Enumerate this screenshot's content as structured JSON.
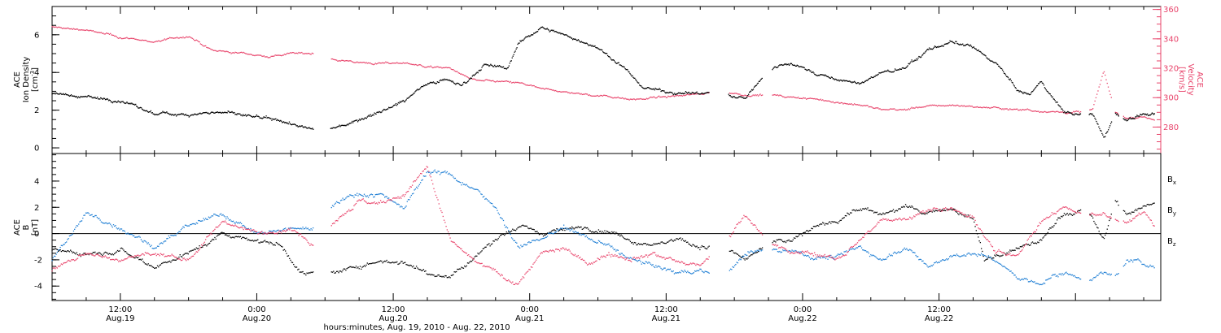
{
  "chart_data": [
    {
      "type": "scatter",
      "panel": "top",
      "left_axis": {
        "label_lines": [
          "ACE",
          "Ion Density"
        ],
        "unit_base": "[cm",
        "unit_sup": "-3",
        "unit_end": "]",
        "ylim": [
          -0.3,
          7.5
        ],
        "ticks": [
          "0",
          "2",
          "4",
          "6"
        ],
        "tick_values": [
          0,
          2,
          4,
          6
        ],
        "color": "#000000"
      },
      "right_axis": {
        "label_lines": [
          "ACE",
          "Velocity",
          "[km/s]"
        ],
        "ylim": [
          262,
          362
        ],
        "ticks": [
          "280",
          "300",
          "320",
          "340",
          "360"
        ],
        "tick_values": [
          280,
          300,
          320,
          340,
          360
        ],
        "color": "#e8436a"
      },
      "series": [
        {
          "color": "#000000",
          "axis": "left",
          "spread": 0.12,
          "points": [
            [
              0,
              2.9
            ],
            [
              3,
              2.7
            ],
            [
              6,
              2.5
            ],
            [
              9,
              1.8
            ],
            [
              12,
              1.8
            ],
            [
              15,
              1.9
            ],
            [
              17,
              1.7
            ],
            [
              19,
              1.5
            ],
            [
              21,
              1.3
            ],
            [
              22.5,
              1.0
            ],
            [
              24,
              0.9
            ],
            [
              25,
              1.1
            ],
            [
              27,
              1.5
            ],
            [
              29,
              2.0
            ],
            [
              31,
              2.5
            ],
            [
              33,
              3.5
            ],
            [
              35,
              3.6
            ],
            [
              36,
              3.3
            ],
            [
              38,
              4.4
            ],
            [
              40,
              4.2
            ],
            [
              41,
              5.5
            ],
            [
              43,
              6.4
            ],
            [
              44,
              6.2
            ],
            [
              46,
              5.8
            ],
            [
              48,
              5.3
            ],
            [
              50,
              4.4
            ],
            [
              52,
              3.2
            ],
            [
              54,
              3.0
            ],
            [
              56,
              2.9
            ],
            [
              58,
              2.9
            ],
            [
              60,
              2.7
            ],
            [
              61,
              2.6
            ],
            [
              63,
              4.2
            ],
            [
              65,
              4.5
            ],
            [
              67,
              4.0
            ],
            [
              69,
              3.6
            ],
            [
              71,
              3.4
            ],
            [
              73,
              4.0
            ],
            [
              75,
              4.2
            ],
            [
              77,
              5.2
            ],
            [
              79,
              5.6
            ],
            [
              81,
              5.3
            ],
            [
              83,
              4.5
            ],
            [
              85,
              3.0
            ],
            [
              86,
              2.8
            ],
            [
              87,
              3.5
            ],
            [
              89,
              1.9
            ],
            [
              90.5,
              1.8
            ],
            [
              91.5,
              1.8
            ],
            [
              92.5,
              0.5
            ],
            [
              93.5,
              1.8
            ],
            [
              94.5,
              1.5
            ],
            [
              96,
              1.8
            ],
            [
              97,
              1.7
            ]
          ]
        },
        {
          "color": "#e8436a",
          "axis": "right",
          "spread": 1.0,
          "points": [
            [
              0,
              348
            ],
            [
              3,
              346
            ],
            [
              6,
              341
            ],
            [
              9,
              338
            ],
            [
              12,
              342
            ],
            [
              14,
              332
            ],
            [
              17,
              330
            ],
            [
              19,
              328
            ],
            [
              21,
              330
            ],
            [
              23,
              330
            ],
            [
              25,
              326
            ],
            [
              27,
              324
            ],
            [
              29,
              323
            ],
            [
              31,
              324
            ],
            [
              33,
              321
            ],
            [
              35,
              320
            ],
            [
              37,
              312
            ],
            [
              39,
              311
            ],
            [
              41,
              310
            ],
            [
              43,
              306
            ],
            [
              45,
              304
            ],
            [
              47,
              302
            ],
            [
              49,
              301
            ],
            [
              51,
              299
            ],
            [
              53,
              300
            ],
            [
              55,
              301
            ],
            [
              57,
              303
            ],
            [
              58,
              304
            ],
            [
              61,
              302
            ],
            [
              63,
              302
            ],
            [
              65,
              300
            ],
            [
              67,
              299
            ],
            [
              69,
              297
            ],
            [
              71,
              295
            ],
            [
              73,
              292
            ],
            [
              75,
              292
            ],
            [
              77,
              294
            ],
            [
              79,
              295
            ],
            [
              81,
              294
            ],
            [
              83,
              293
            ],
            [
              85,
              292
            ],
            [
              87,
              291
            ],
            [
              89,
              290
            ],
            [
              90.5,
              290
            ],
            [
              91.5,
              292
            ],
            [
              92.5,
              318
            ],
            [
              93.5,
              290
            ],
            [
              94.5,
              286
            ],
            [
              96,
              287
            ],
            [
              97,
              285
            ]
          ]
        }
      ]
    },
    {
      "type": "scatter",
      "panel": "bottom",
      "left_axis": {
        "label_lines": [
          "ACE",
          "B",
          "[nT]"
        ],
        "ylim": [
          -5.1,
          6.1
        ],
        "ticks": [
          "-4",
          "-2",
          "0",
          "2",
          "4"
        ],
        "tick_values": [
          -4,
          -2,
          0,
          2,
          4
        ],
        "color": "#000000"
      },
      "reference_line": 0,
      "series": [
        {
          "name": "B",
          "sub": "x",
          "color": "#000000",
          "spread": 0.25,
          "points": [
            [
              0,
              -1.2
            ],
            [
              3,
              -1.5
            ],
            [
              6,
              -1.2
            ],
            [
              9,
              -2.5
            ],
            [
              12,
              -1.5
            ],
            [
              15,
              0.0
            ],
            [
              18,
              -0.5
            ],
            [
              20,
              -0.8
            ],
            [
              22,
              -3.0
            ],
            [
              24,
              -3.2
            ],
            [
              25,
              -3.0
            ],
            [
              27,
              -2.5
            ],
            [
              29,
              -2.0
            ],
            [
              31,
              -2.2
            ],
            [
              33,
              -3.0
            ],
            [
              35,
              -3.2
            ],
            [
              37,
              -2.0
            ],
            [
              39,
              -0.3
            ],
            [
              41,
              0.5
            ],
            [
              43,
              0.0
            ],
            [
              45,
              0.3
            ],
            [
              47,
              0.5
            ],
            [
              49,
              0.2
            ],
            [
              51,
              -0.5
            ],
            [
              53,
              -0.8
            ],
            [
              55,
              -0.5
            ],
            [
              57,
              -1.0
            ],
            [
              59,
              -1.0
            ],
            [
              61,
              -2.0
            ],
            [
              63,
              -0.8
            ],
            [
              65,
              -0.5
            ],
            [
              67,
              0.5
            ],
            [
              69,
              1.0
            ],
            [
              71,
              2.0
            ],
            [
              73,
              1.5
            ],
            [
              75,
              2.0
            ],
            [
              77,
              1.5
            ],
            [
              79,
              2.0
            ],
            [
              81,
              1.0
            ],
            [
              82,
              -2.0
            ],
            [
              84,
              -1.5
            ],
            [
              86,
              -0.8
            ],
            [
              87,
              -0.5
            ],
            [
              89,
              1.5
            ],
            [
              91,
              1.8
            ],
            [
              92.5,
              -0.5
            ],
            [
              93.5,
              2.5
            ],
            [
              94.5,
              1.5
            ],
            [
              96,
              2.0
            ],
            [
              97,
              2.5
            ]
          ]
        },
        {
          "name": "B",
          "sub": "y",
          "color": "#1e7ed4",
          "spread": 0.25,
          "points": [
            [
              0,
              -2.0
            ],
            [
              3,
              1.5
            ],
            [
              6,
              0.5
            ],
            [
              9,
              -1.0
            ],
            [
              12,
              0.5
            ],
            [
              15,
              1.5
            ],
            [
              18,
              0.0
            ],
            [
              21,
              0.3
            ],
            [
              23,
              0.5
            ],
            [
              25,
              2.5
            ],
            [
              27,
              3.0
            ],
            [
              29,
              3.0
            ],
            [
              31,
              2.0
            ],
            [
              33,
              4.8
            ],
            [
              35,
              4.5
            ],
            [
              37,
              3.5
            ],
            [
              39,
              2.0
            ],
            [
              41,
              -1.0
            ],
            [
              43,
              -0.5
            ],
            [
              45,
              0.5
            ],
            [
              47,
              -0.3
            ],
            [
              49,
              -1.0
            ],
            [
              51,
              -2.0
            ],
            [
              53,
              -2.5
            ],
            [
              55,
              -3.0
            ],
            [
              57,
              -2.8
            ],
            [
              59,
              -3.3
            ],
            [
              61,
              -1.5
            ],
            [
              63,
              -1.2
            ],
            [
              65,
              -1.2
            ],
            [
              67,
              -1.8
            ],
            [
              69,
              -1.8
            ],
            [
              71,
              -1.0
            ],
            [
              73,
              -2.0
            ],
            [
              75,
              -1.0
            ],
            [
              77,
              -2.5
            ],
            [
              79,
              -1.8
            ],
            [
              81,
              -1.5
            ],
            [
              83,
              -2.0
            ],
            [
              85,
              -3.5
            ],
            [
              86.5,
              -3.8
            ],
            [
              88,
              -3.3
            ],
            [
              89,
              -3.0
            ],
            [
              91,
              -3.5
            ],
            [
              92.5,
              -3.0
            ],
            [
              93.5,
              -3.2
            ],
            [
              94.5,
              -2.0
            ],
            [
              96,
              -2.3
            ],
            [
              97,
              -2.5
            ]
          ]
        },
        {
          "name": "B",
          "sub": "z",
          "color": "#e8436a",
          "spread": 0.25,
          "points": [
            [
              0,
              -2.8
            ],
            [
              3,
              -1.5
            ],
            [
              6,
              -2.0
            ],
            [
              9,
              -1.5
            ],
            [
              12,
              -2.0
            ],
            [
              15,
              1.0
            ],
            [
              18,
              0.0
            ],
            [
              21,
              0.5
            ],
            [
              23,
              -0.8
            ],
            [
              25,
              1.2
            ],
            [
              27,
              2.5
            ],
            [
              29,
              2.2
            ],
            [
              31,
              3.0
            ],
            [
              33,
              5.0
            ],
            [
              35,
              -0.5
            ],
            [
              37,
              -2.0
            ],
            [
              39,
              -3.0
            ],
            [
              41,
              -3.8
            ],
            [
              43,
              -1.5
            ],
            [
              45,
              -1.2
            ],
            [
              47,
              -2.3
            ],
            [
              49,
              -1.5
            ],
            [
              51,
              -1.8
            ],
            [
              53,
              -1.5
            ],
            [
              55,
              -2.2
            ],
            [
              57,
              -2.5
            ],
            [
              59,
              -1.0
            ],
            [
              61,
              1.5
            ],
            [
              63,
              -0.5
            ],
            [
              65,
              -1.5
            ],
            [
              67,
              -1.5
            ],
            [
              69,
              -2.0
            ],
            [
              71,
              -0.5
            ],
            [
              73,
              1.0
            ],
            [
              75,
              1.2
            ],
            [
              77,
              1.8
            ],
            [
              79,
              2.0
            ],
            [
              81,
              1.2
            ],
            [
              83,
              -1.5
            ],
            [
              85,
              -1.5
            ],
            [
              87,
              1.0
            ],
            [
              89,
              2.0
            ],
            [
              91,
              1.5
            ],
            [
              92.5,
              1.5
            ],
            [
              93.5,
              1.0
            ],
            [
              94.5,
              1.0
            ],
            [
              96,
              1.8
            ],
            [
              97,
              0.5
            ]
          ]
        }
      ]
    }
  ],
  "x_axis": {
    "start_hour": 0,
    "end_hour": 97.5,
    "gaps": [
      [
        23,
        24.5
      ],
      [
        57.8,
        59.5
      ],
      [
        62.5,
        63.3
      ],
      [
        90.5,
        91.2
      ],
      [
        93.2,
        93.5
      ],
      [
        93.8,
        94.2
      ]
    ],
    "major_ticks": [
      {
        "hour": 6,
        "line1": "12:00",
        "line2": "Aug.19"
      },
      {
        "hour": 18,
        "line1": "0:00",
        "line2": "Aug.20"
      },
      {
        "hour": 30,
        "line1": "12:00",
        "line2": "Aug.20"
      },
      {
        "hour": 42,
        "line1": "0:00",
        "line2": "Aug.21"
      },
      {
        "hour": 54,
        "line1": "12:00",
        "line2": "Aug.21"
      },
      {
        "hour": 66,
        "line1": "0:00",
        "line2": "Aug.22"
      },
      {
        "hour": 78,
        "line1": "12:00",
        "line2": "Aug.22"
      }
    ],
    "title": "hours:minutes, Aug. 19, 2010 - Aug. 22, 2010"
  }
}
